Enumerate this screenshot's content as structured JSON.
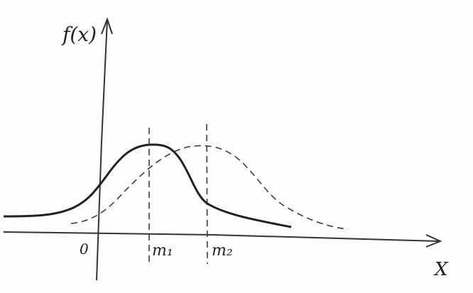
{
  "labels": {
    "y_axis": "f(x)",
    "x_axis": "X",
    "origin": "0",
    "m1": "m₁",
    "m2": "m₂"
  }
}
